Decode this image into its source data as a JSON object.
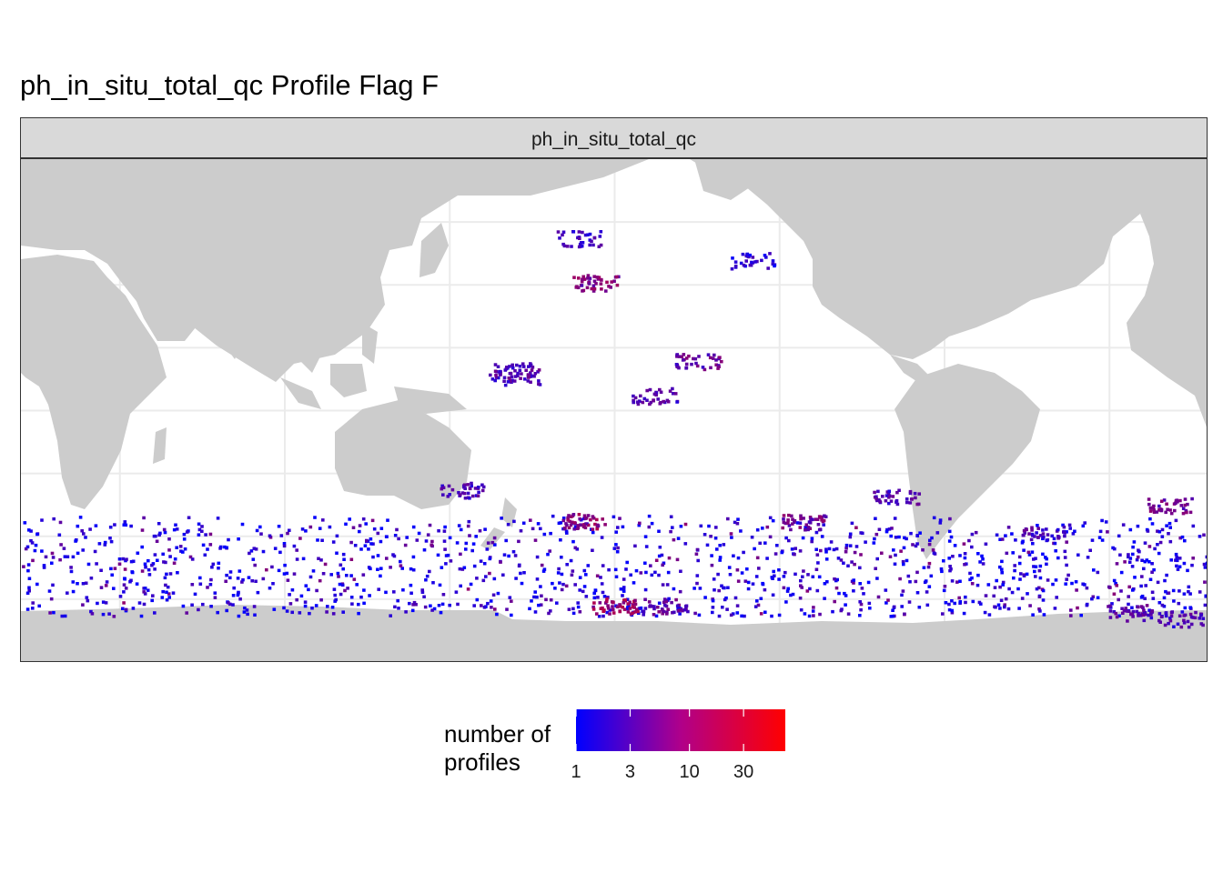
{
  "plot": {
    "title": "ph_in_situ_total_qc Profile Flag F",
    "facet_label": "ph_in_situ_total_qc"
  },
  "legend": {
    "title_line1": "number of",
    "title_line2": "profiles",
    "ticks": [
      {
        "label": "1",
        "value": 1
      },
      {
        "label": "3",
        "value": 3
      },
      {
        "label": "10",
        "value": 10
      },
      {
        "label": "30",
        "value": 30
      }
    ],
    "scale": "log",
    "range": [
      1,
      70
    ],
    "color_low": "#0000ff",
    "color_high": "#ff0000"
  },
  "colors": {
    "land": "#cccccc",
    "ocean": "#ffffff",
    "grid": "#ebebeb",
    "strip": "#d9d9d9"
  },
  "chart_data": {
    "type": "heatmap",
    "title": "ph_in_situ_total_qc Profile Flag F",
    "facet": "ph_in_situ_total_qc",
    "x_axis": "longitude (20°E to 380°E, Pacific-centred)",
    "y_axis": "latitude",
    "xlim": [
      20,
      380
    ],
    "ylim": [
      -80,
      80
    ],
    "grid_longitudes": [
      50,
      100,
      150,
      200,
      250,
      300,
      350
    ],
    "grid_latitudes": [
      -60,
      -40,
      -20,
      0,
      20,
      40,
      60
    ],
    "fill": "number of profiles (log scale)",
    "clusters": [
      {
        "lon": 194,
        "lat": 41,
        "count": 12
      },
      {
        "lon": 168,
        "lat": 13,
        "count": 4
      },
      {
        "lon": 170,
        "lat": 11,
        "count": 6
      },
      {
        "lon": 225,
        "lat": 16,
        "count": 8
      },
      {
        "lon": 212,
        "lat": 5,
        "count": 5
      },
      {
        "lon": 189,
        "lat": 55,
        "count": 4
      },
      {
        "lon": 242,
        "lat": 48,
        "count": 3
      },
      {
        "lon": 153,
        "lat": -25,
        "count": 5
      },
      {
        "lon": 191,
        "lat": -35,
        "count": 15
      },
      {
        "lon": 257,
        "lat": -35,
        "count": 10
      },
      {
        "lon": 285,
        "lat": -27,
        "count": 6
      },
      {
        "lon": 368,
        "lat": -30,
        "count": 9
      },
      {
        "lon": 330,
        "lat": -39,
        "count": 5
      },
      {
        "lon": 215,
        "lat": -62,
        "count": 7
      },
      {
        "lon": 200,
        "lat": -62,
        "count": 20
      },
      {
        "lon": 356,
        "lat": -64,
        "count": 6
      },
      {
        "lon": 371,
        "lat": -66,
        "count": 5
      }
    ]
  }
}
